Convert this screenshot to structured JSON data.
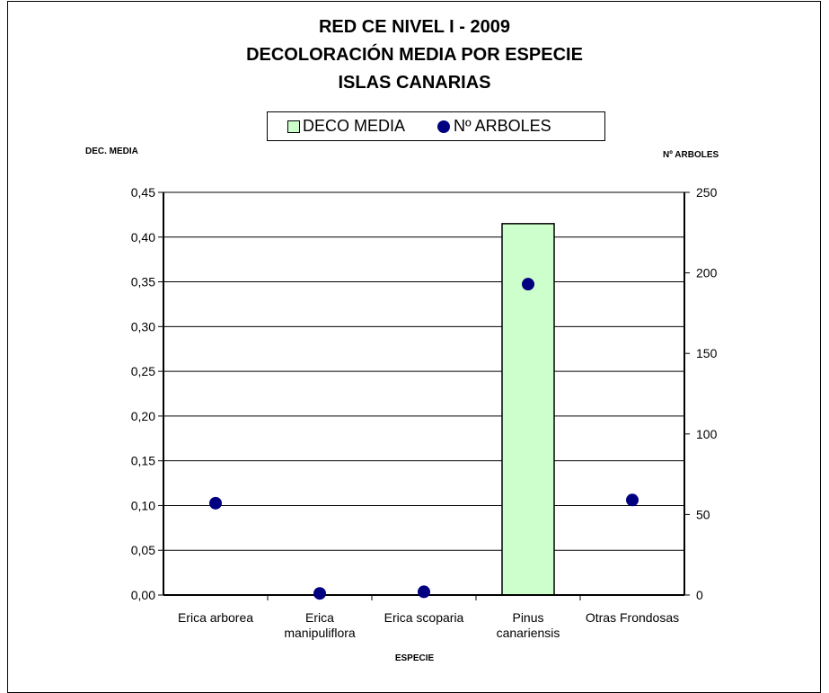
{
  "chart_data": {
    "type": "bar",
    "title_lines": [
      "RED CE NIVEL I - 2009",
      "DECOLORACIÓN MEDIA POR ESPECIE",
      "ISLAS CANARIAS"
    ],
    "xlabel": "ESPECIE",
    "ylabel_left": "DEC. MEDIA",
    "ylabel_right": "Nº ARBOLES",
    "categories": [
      [
        "Erica arborea"
      ],
      [
        "Erica",
        "manipuliflora"
      ],
      [
        "Erica scoparia"
      ],
      [
        "Pinus",
        "canariensis"
      ],
      [
        "Otras Frondosas"
      ]
    ],
    "series": [
      {
        "name": "DECO MEDIA",
        "type": "bar",
        "axis": "left",
        "values": [
          0,
          0,
          0,
          0.415,
          0
        ],
        "color": "#ccffcc"
      },
      {
        "name": "Nº ARBOLES",
        "type": "scatter",
        "axis": "right",
        "values": [
          57,
          1,
          2,
          193,
          59
        ],
        "color": "#000080"
      }
    ],
    "ylim_left": [
      0,
      0.45
    ],
    "yticks_left": [
      "0,00",
      "0,05",
      "0,10",
      "0,15",
      "0,20",
      "0,25",
      "0,30",
      "0,35",
      "0,40",
      "0,45"
    ],
    "ylim_right": [
      0,
      250
    ],
    "yticks_right": [
      "0",
      "50",
      "100",
      "150",
      "200",
      "250"
    ],
    "grid": true,
    "legend_position": "top"
  }
}
